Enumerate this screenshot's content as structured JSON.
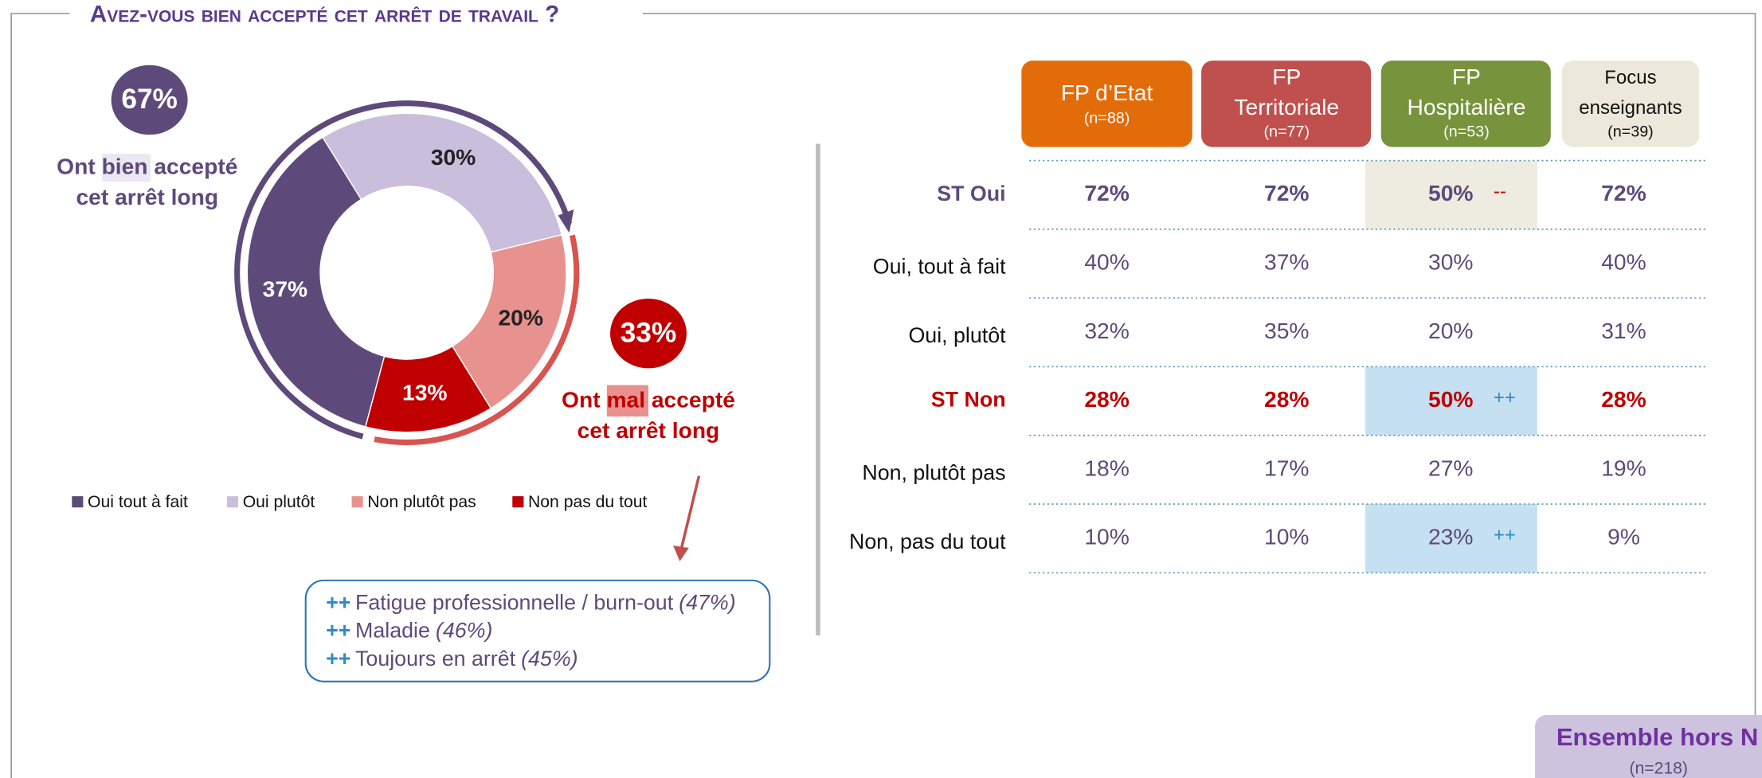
{
  "title": "Avez-vous bien accepté cet arrêt de travail ?",
  "chart_data": {
    "type": "donut",
    "categories": [
      "Oui tout à fait",
      "Oui plutôt",
      "Non plutôt pas",
      "Non pas du tout"
    ],
    "values": [
      37,
      30,
      20,
      13
    ],
    "value_labels": [
      "37%",
      "30%",
      "20%",
      "13%"
    ],
    "colors": [
      "#5e4a7a",
      "#c9bfdc",
      "#e8928f",
      "#c00000"
    ],
    "label_colors": [
      "#ffffff",
      "#222222",
      "#222222",
      "#ffffff"
    ]
  },
  "positive": {
    "badge": "67%",
    "before": "Ont ",
    "highlight": "bien",
    "after": " accepté",
    "line2": "cet arrêt long"
  },
  "negative": {
    "badge": "33%",
    "before": "Ont ",
    "highlight": "mal",
    "after": " accepté",
    "line2": "cet arrêt long"
  },
  "callout": [
    {
      "marker": "++",
      "text": "Fatigue professionnelle / burn-out",
      "share": "(47%)"
    },
    {
      "marker": "++",
      "text": "Maladie",
      "share": "(46%)"
    },
    {
      "marker": "++",
      "text": "Toujours en arrêt",
      "share": "(45%)"
    }
  ],
  "table": {
    "columns": [
      {
        "name": [
          "FP d’Etat"
        ],
        "n": "(n=88)",
        "color": "#e36c0a",
        "text_color": "#ffffff"
      },
      {
        "name": [
          "FP",
          "Territoriale"
        ],
        "n": "(n=77)",
        "color": "#c0504d",
        "text_color": "#ffffff"
      },
      {
        "name": [
          "FP",
          "Hospitalière"
        ],
        "n": "(n=53)",
        "color": "#77933c",
        "text_color": "#ffffff"
      },
      {
        "name": [
          "Focus",
          "enseignants"
        ],
        "n": "(n=39)",
        "color": "#ece9dc",
        "text_color": "#111111"
      }
    ],
    "rows": [
      {
        "label": "ST Oui",
        "style": "yes",
        "cells": [
          "72%",
          "72%",
          "50%",
          "72%"
        ],
        "highlight": {
          "col": 2,
          "marker": "--",
          "color": "#eeebe0",
          "marker_color": "#c00000"
        }
      },
      {
        "label": "Oui, tout à fait",
        "style": "detail",
        "cells": [
          "40%",
          "37%",
          "30%",
          "40%"
        ]
      },
      {
        "label": "Oui, plutôt",
        "style": "detail",
        "cells": [
          "32%",
          "35%",
          "20%",
          "31%"
        ]
      },
      {
        "label": "ST Non",
        "style": "no",
        "cells": [
          "28%",
          "28%",
          "50%",
          "28%"
        ],
        "highlight": {
          "col": 2,
          "marker": "++",
          "color": "#c5e0f0",
          "marker_color": "#2e8bc9"
        }
      },
      {
        "label": "Non, plutôt pas",
        "style": "detail",
        "cells": [
          "18%",
          "17%",
          "27%",
          "19%"
        ]
      },
      {
        "label": "Non, pas du tout",
        "style": "detail",
        "cells": [
          "10%",
          "10%",
          "23%",
          "9%"
        ],
        "highlight": {
          "col": 2,
          "marker": "++",
          "color": "#c5e0f0",
          "marker_color": "#2e8bc9"
        }
      }
    ]
  },
  "footer": {
    "title": "Ensemble hors N",
    "n": "(n=218)"
  }
}
